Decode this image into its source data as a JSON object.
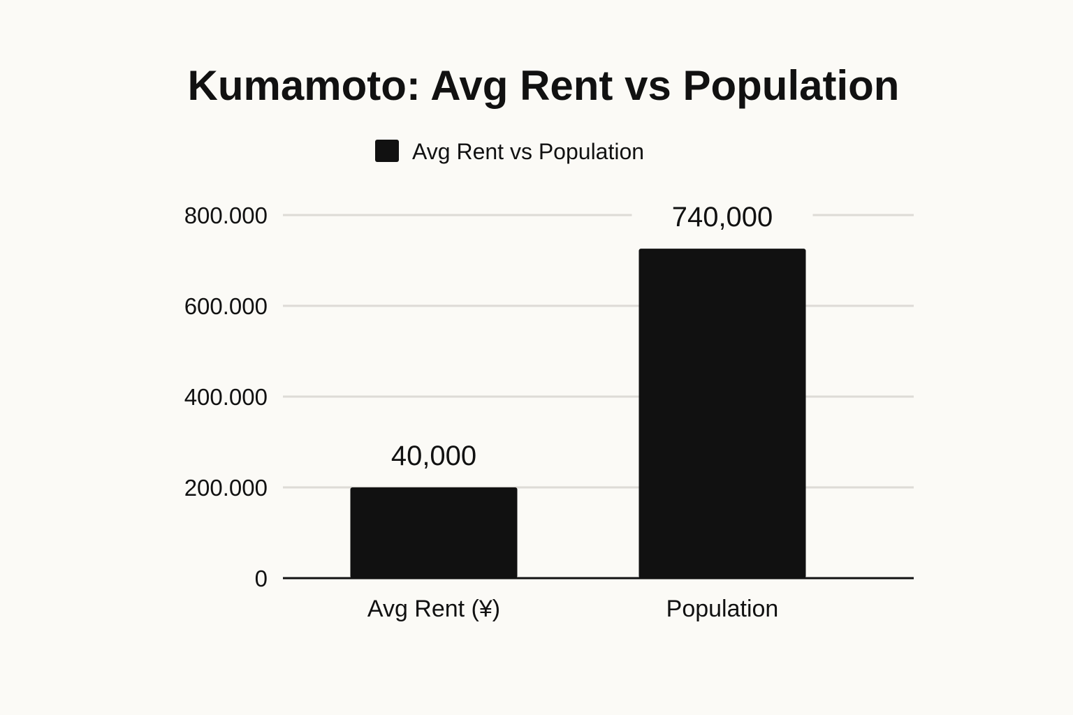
{
  "chart_data": {
    "type": "bar",
    "title": "Kumamoto: Avg Rent vs Population",
    "legend": {
      "label": "Avg Rent vs Population",
      "placement": "top-center",
      "color": "#111111"
    },
    "categories": [
      "Avg Rent (¥)",
      "Population"
    ],
    "values": [
      40000,
      740000
    ],
    "data_labels": [
      "40,000",
      "740,000"
    ],
    "displayed_bar_heights": [
      200000,
      726000
    ],
    "bar_color": "#111111",
    "xlabel": "",
    "ylabel": "",
    "ylim": [
      0,
      800000
    ],
    "yticks": [
      0,
      200000,
      400000,
      600000,
      800000
    ],
    "ytick_labels": [
      "0",
      "200.000",
      "400.000",
      "600.000",
      "800.000"
    ],
    "grid": true
  }
}
